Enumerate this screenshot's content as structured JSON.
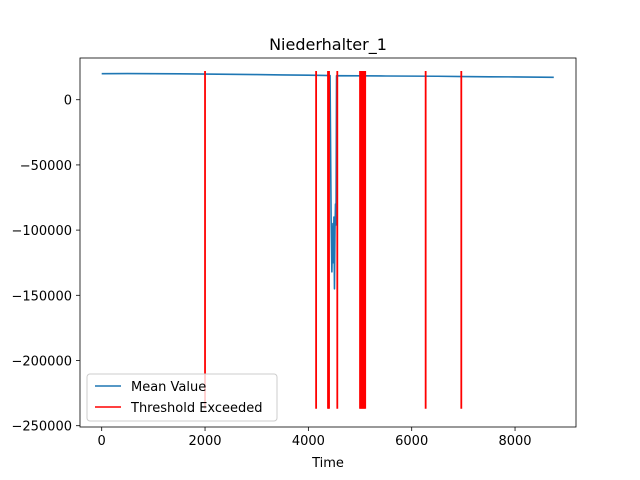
{
  "chart_data": {
    "type": "line",
    "title": "Niederhalter_1",
    "xlabel": "Time",
    "ylabel": "",
    "xlim": [
      -420,
      9180
    ],
    "ylim": [
      -251000,
      32000
    ],
    "xticks": [
      0,
      2000,
      4000,
      6000,
      8000
    ],
    "yticks": [
      0,
      -50000,
      -100000,
      -150000,
      -200000,
      -250000
    ],
    "xtick_labels": [
      "0",
      "2000",
      "4000",
      "6000",
      "8000"
    ],
    "ytick_labels": [
      "0",
      "−50000",
      "−100000",
      "−150000",
      "−200000",
      "−250000"
    ],
    "grid": false,
    "legend_position": "lower-left",
    "series": [
      {
        "name": "Mean Value",
        "color": "#1f77b4",
        "points": [
          [
            0,
            20000
          ],
          [
            500,
            20100
          ],
          [
            1000,
            20000
          ],
          [
            1500,
            19900
          ],
          [
            2000,
            19700
          ],
          [
            2500,
            19500
          ],
          [
            3000,
            19300
          ],
          [
            3500,
            19000
          ],
          [
            4000,
            18800
          ],
          [
            4300,
            18600
          ],
          [
            4420,
            18500
          ],
          [
            4440,
            -90000
          ],
          [
            4455,
            -132000
          ],
          [
            4465,
            -110000
          ],
          [
            4475,
            -95000
          ],
          [
            4485,
            -125000
          ],
          [
            4495,
            -90000
          ],
          [
            4505,
            -145000
          ],
          [
            4515,
            -100000
          ],
          [
            4525,
            -80000
          ],
          [
            4535,
            -96000
          ],
          [
            4545,
            18400
          ],
          [
            5000,
            18300
          ],
          [
            5500,
            18200
          ],
          [
            6000,
            18100
          ],
          [
            6500,
            18000
          ],
          [
            7000,
            17800
          ],
          [
            7500,
            17600
          ],
          [
            8000,
            17500
          ],
          [
            8500,
            17300
          ],
          [
            8750,
            17200
          ]
        ]
      },
      {
        "name": "Threshold Exceeded",
        "color": "#ff0000",
        "type": "vlines",
        "ymin": -237000,
        "ymax": 22000,
        "x": [
          2000,
          4150,
          4380,
          4400,
          4560,
          5000,
          5020,
          5040,
          5060,
          5080,
          5100,
          6270,
          6960
        ]
      }
    ]
  }
}
